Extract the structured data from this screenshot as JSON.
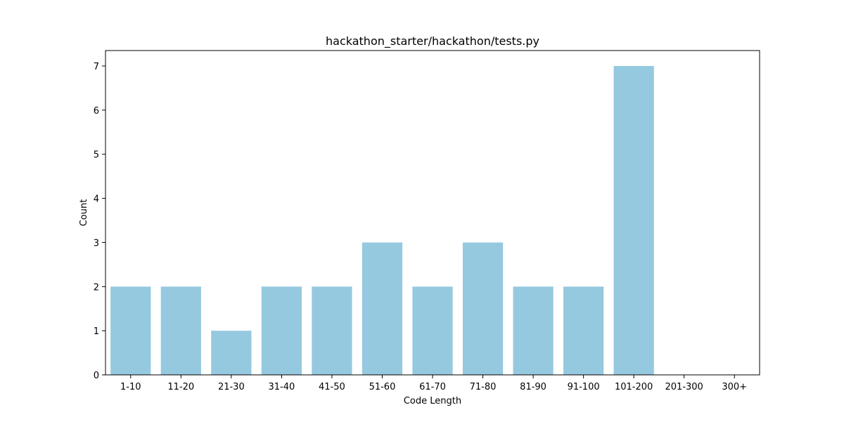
{
  "chart_data": {
    "type": "bar",
    "title": "hackathon_starter/hackathon/tests.py",
    "xlabel": "Code Length",
    "ylabel": "Count",
    "categories": [
      "1-10",
      "11-20",
      "21-30",
      "31-40",
      "41-50",
      "51-60",
      "61-70",
      "71-80",
      "81-90",
      "91-100",
      "101-200",
      "201-300",
      "300+"
    ],
    "values": [
      2,
      2,
      1,
      2,
      2,
      3,
      2,
      3,
      2,
      2,
      7,
      0,
      0
    ],
    "ylim": [
      0,
      7.35
    ],
    "yticks": [
      "0",
      "1",
      "2",
      "3",
      "4",
      "5",
      "6",
      "7"
    ],
    "grid": false,
    "legend": "none",
    "bar_color": "#95c9df"
  }
}
